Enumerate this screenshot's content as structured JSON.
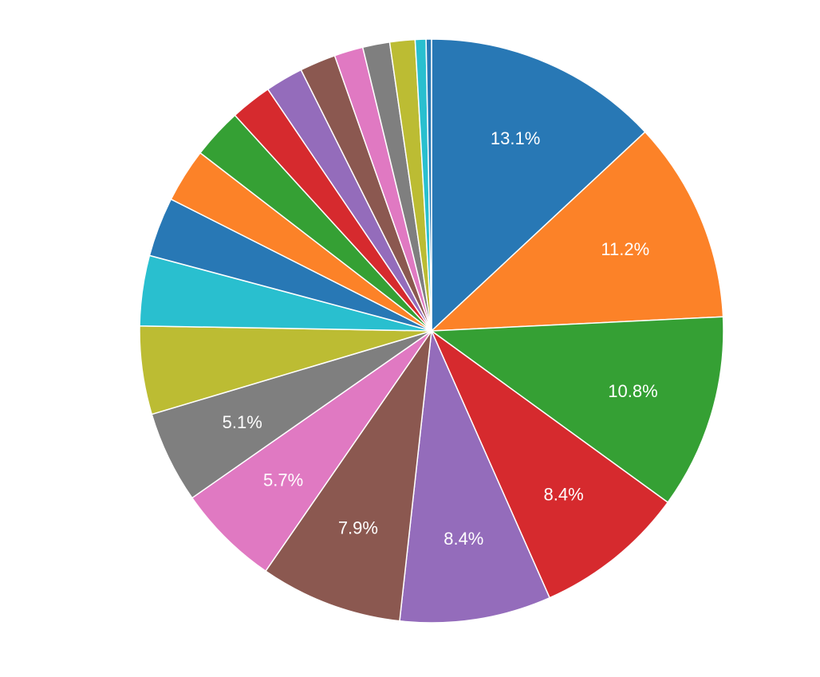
{
  "chart_data": {
    "type": "pie",
    "title": "",
    "start": "top",
    "direction": "clockwise",
    "slices": [
      {
        "value": 13.1,
        "label": "13.1%",
        "color": "#2878b5"
      },
      {
        "value": 11.2,
        "label": "11.2%",
        "color": "#fc8228"
      },
      {
        "value": 10.8,
        "label": "10.8%",
        "color": "#35a034"
      },
      {
        "value": 8.4,
        "label": "8.4%",
        "color": "#d62a2e"
      },
      {
        "value": 8.4,
        "label": "8.4%",
        "color": "#946cbb"
      },
      {
        "value": 7.9,
        "label": "7.9%",
        "color": "#8b5850"
      },
      {
        "value": 5.7,
        "label": "5.7%",
        "color": "#e079c2"
      },
      {
        "value": 5.1,
        "label": "5.1%",
        "color": "#7f7f7f"
      },
      {
        "value": 4.9,
        "label": "",
        "color": "#bcbc33"
      },
      {
        "value": 3.9,
        "label": "",
        "color": "#29bfcf"
      },
      {
        "value": 3.3,
        "label": "",
        "color": "#2878b5"
      },
      {
        "value": 3.0,
        "label": "",
        "color": "#fc8228"
      },
      {
        "value": 2.8,
        "label": "",
        "color": "#35a034"
      },
      {
        "value": 2.3,
        "label": "",
        "color": "#d62a2e"
      },
      {
        "value": 2.1,
        "label": "",
        "color": "#946cbb"
      },
      {
        "value": 2.0,
        "label": "",
        "color": "#8b5850"
      },
      {
        "value": 1.6,
        "label": "",
        "color": "#e079c2"
      },
      {
        "value": 1.5,
        "label": "",
        "color": "#7f7f7f"
      },
      {
        "value": 1.4,
        "label": "",
        "color": "#bcbc33"
      },
      {
        "value": 0.6,
        "label": "",
        "color": "#29bfcf"
      },
      {
        "value": 0.3,
        "label": "",
        "color": "#2878b5"
      }
    ]
  }
}
